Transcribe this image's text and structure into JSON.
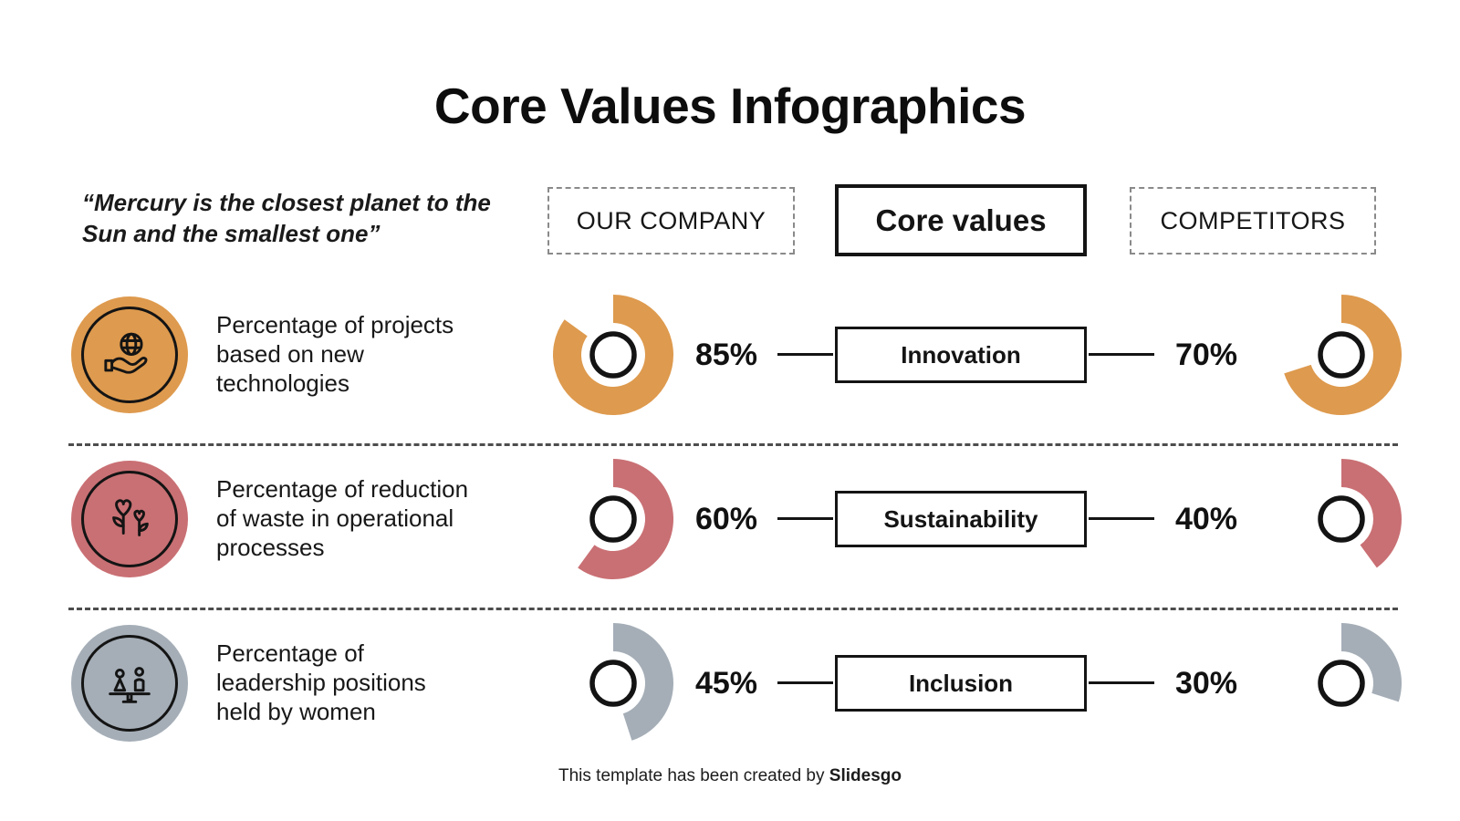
{
  "slide": {
    "title": "Core Values Infographics",
    "quote": "“Mercury is the closest planet to the Sun and the smallest one”",
    "footer_prefix": "This template has been created by ",
    "footer_brand": "Slidesgo"
  },
  "columns": {
    "company": "OUR COMPANY",
    "center": "Core values",
    "competitors": "COMPETITORS"
  },
  "rows": [
    {
      "icon": "hand-globe-icon",
      "color": "#DE9A4E",
      "description": "Percentage of projects based on new technologies",
      "value": "Innovation",
      "company_pct": 85,
      "company_label": "85%",
      "competitors_pct": 70,
      "competitors_label": "70%"
    },
    {
      "icon": "heart-flowers-icon",
      "color": "#C97074",
      "description": "Percentage of reduction of waste in operational processes",
      "value": "Sustainability",
      "company_pct": 60,
      "company_label": "60%",
      "competitors_pct": 40,
      "competitors_label": "40%"
    },
    {
      "icon": "balance-equality-icon",
      "color": "#A5AEB7",
      "description": "Percentage of leadership positions held by women",
      "value": "Inclusion",
      "company_pct": 45,
      "company_label": "45%",
      "competitors_pct": 30,
      "competitors_label": "30%"
    }
  ],
  "chart_data": {
    "type": "pie",
    "subtype": "donut-gauges",
    "title": "Core Values Infographics",
    "unit": "%",
    "categories": [
      "Innovation",
      "Sustainability",
      "Inclusion"
    ],
    "series": [
      {
        "name": "OUR COMPANY",
        "values": [
          85,
          60,
          45
        ]
      },
      {
        "name": "COMPETITORS",
        "values": [
          70,
          40,
          30
        ]
      }
    ],
    "colors": [
      "#DE9A4E",
      "#C97074",
      "#A5AEB7"
    ],
    "gauge_start_angle_deg": 0,
    "gauge_direction": "clockwise"
  }
}
